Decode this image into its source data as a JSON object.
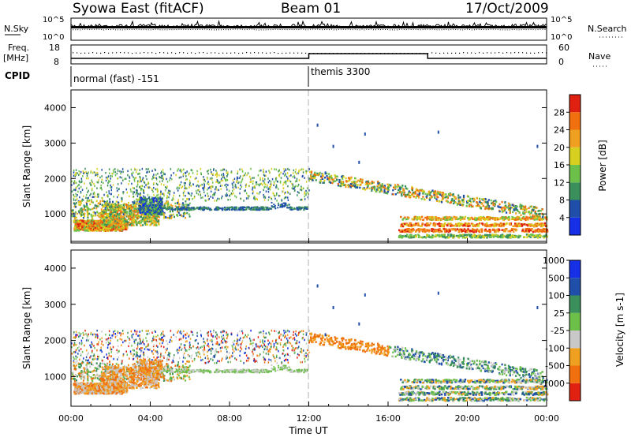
{
  "header": {
    "station": "Syowa East (fitACF)",
    "beam": "Beam 01",
    "date": "17/Oct/2009"
  },
  "noise_panel": {
    "left_label": "N.Sky",
    "right_label": "N.Search",
    "tick_top": "10^5",
    "tick_bottom": "10^0"
  },
  "freq_panel": {
    "left_label_1": "Freq.",
    "left_label_2": "[MHz]",
    "left_tick_top": "18",
    "left_tick_bottom": "8",
    "right_label": "Nave",
    "right_tick_top": "60",
    "right_tick_bottom": "0"
  },
  "cpid": {
    "label": "CPID",
    "modes": [
      {
        "name": "normal (fast) -151",
        "start_hour": 0
      },
      {
        "name": "themis 3300",
        "start_hour": 12
      }
    ]
  },
  "colors": {
    "power_scale": [
      "#1530e6",
      "#1f4fa8",
      "#3b8f5a",
      "#6cc04a",
      "#d8d020",
      "#f0a020",
      "#f07010",
      "#e02010"
    ],
    "velocity_scale": [
      "#e02010",
      "#f07010",
      "#f0a020",
      "#c8c8c8",
      "#6cc04a",
      "#3b8f5a",
      "#1f4fa8",
      "#1530e6"
    ],
    "separator": "#b0b0b0"
  },
  "chart_data": [
    {
      "type": "heatmap",
      "name": "power",
      "ylabel": "Slant Range [km]",
      "ylim": [
        180,
        4500
      ],
      "yticks": [
        1000,
        2000,
        3000,
        4000
      ],
      "xlim": [
        0,
        24
      ],
      "colorbar": {
        "label": "Power [dB]",
        "ticks": [
          "4",
          "8",
          "12",
          "16",
          "20",
          "24",
          "28"
        ],
        "range": [
          0,
          32
        ]
      },
      "echo_regions": [
        {
          "t0": 0.2,
          "t1": 3.5,
          "r0": 550,
          "r1": 900,
          "value_level": "high"
        },
        {
          "t0": 3.0,
          "t1": 4.6,
          "r0": 900,
          "r1": 1500,
          "value_level": "medium"
        },
        {
          "t0": 4.5,
          "t1": 12.0,
          "r0": 1100,
          "r1": 1250,
          "value_level": "low"
        },
        {
          "t0": 12.0,
          "t1": 24.0,
          "r0": 400,
          "r1": 2000,
          "value_level": "high"
        }
      ]
    },
    {
      "type": "heatmap",
      "name": "velocity",
      "ylabel": "Slant Range [km]",
      "xlabel": "Time UT",
      "ylim": [
        180,
        4500
      ],
      "yticks": [
        1000,
        2000,
        3000,
        4000
      ],
      "xticks": [
        "00:00",
        "04:00",
        "08:00",
        "12:00",
        "16:00",
        "20:00",
        "00:00"
      ],
      "xlim": [
        0,
        24
      ],
      "colorbar": {
        "label": "Velocity [m s-1]",
        "ticks": [
          "-1000",
          "-500",
          "-100",
          "-25",
          "25",
          "100",
          "500",
          "1000"
        ]
      }
    }
  ]
}
